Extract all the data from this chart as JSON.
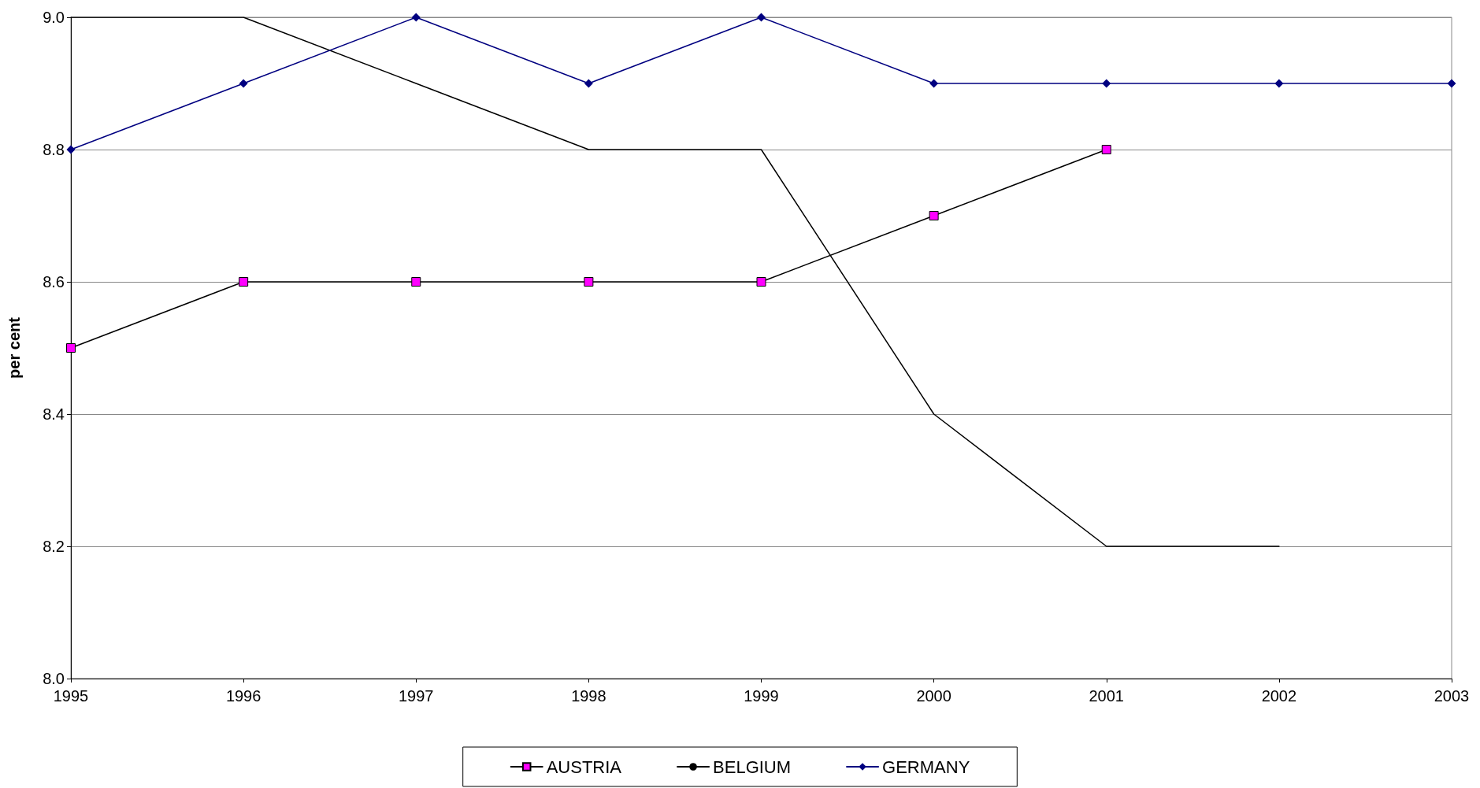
{
  "chart_data": {
    "type": "line",
    "ylabel": "per cent",
    "categories": [
      "1995",
      "1996",
      "1997",
      "1998",
      "1999",
      "2000",
      "2001",
      "2002",
      "2003"
    ],
    "series": [
      {
        "name": "AUSTRIA",
        "color": "#ff00ff",
        "marker": "square",
        "values": [
          8.5,
          8.6,
          8.6,
          8.6,
          8.6,
          8.7,
          8.8,
          null,
          null
        ]
      },
      {
        "name": "BELGIUM",
        "color": "#000000",
        "marker": "none",
        "values": [
          9.0,
          9.0,
          8.9,
          8.8,
          8.8,
          8.4,
          8.2,
          8.2,
          null
        ]
      },
      {
        "name": "GERMANY",
        "color": "#000080",
        "marker": "diamond",
        "values": [
          8.8,
          8.9,
          9.0,
          8.9,
          9.0,
          8.9,
          8.9,
          8.9,
          8.9
        ]
      }
    ],
    "ylim": [
      8.0,
      9.0
    ],
    "yticks": [
      {
        "value": 8.0,
        "label": "8.0"
      },
      {
        "value": 8.2,
        "label": "8.2"
      },
      {
        "value": 8.4,
        "label": "8.4"
      },
      {
        "value": 8.6,
        "label": "8.6"
      },
      {
        "value": 8.8,
        "label": "8.8"
      },
      {
        "value": 9.0,
        "label": "9.0"
      }
    ],
    "grid": "y",
    "legend": "bottom",
    "line_style": "solid"
  }
}
